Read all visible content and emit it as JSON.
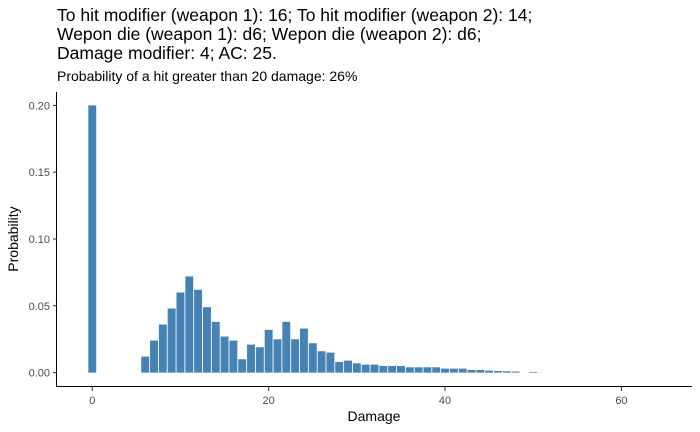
{
  "title_lines": [
    "To hit modifier (weapon 1): 16; To hit modifier (weapon 2): 14;",
    "Wepon die (weapon 1): d6; Wepon die (weapon 2): d6;",
    "Damage modifier: 4; AC: 25."
  ],
  "subtitle": "Probability of a hit greater than 20 damage: 26%",
  "colors": {
    "bar": "#4682b4",
    "axis": "#000000",
    "tick_text": "#4d4d4d"
  },
  "chart_data": {
    "type": "bar",
    "xlabel": "Damage",
    "ylabel": "Probability",
    "xlim": [
      -4,
      68
    ],
    "ylim": [
      -0.01,
      0.21
    ],
    "x_ticks": [
      0,
      20,
      40,
      60
    ],
    "y_ticks": [
      0.0,
      0.05,
      0.1,
      0.15,
      0.2
    ],
    "x_tick_labels": [
      "0",
      "20",
      "40",
      "60"
    ],
    "y_tick_labels": [
      "0.00",
      "0.05",
      "0.10",
      "0.15",
      "0.20"
    ],
    "grid": false,
    "x": [
      0,
      6,
      7,
      8,
      9,
      10,
      11,
      12,
      13,
      14,
      15,
      16,
      17,
      18,
      19,
      20,
      21,
      22,
      23,
      24,
      25,
      26,
      27,
      28,
      29,
      30,
      31,
      32,
      33,
      34,
      35,
      36,
      37,
      38,
      39,
      40,
      41,
      42,
      43,
      44,
      45,
      46,
      47,
      48,
      50
    ],
    "values": [
      0.2,
      0.012,
      0.024,
      0.036,
      0.048,
      0.06,
      0.072,
      0.062,
      0.049,
      0.038,
      0.027,
      0.024,
      0.01,
      0.021,
      0.019,
      0.032,
      0.025,
      0.038,
      0.025,
      0.033,
      0.022,
      0.016,
      0.015,
      0.008,
      0.009,
      0.007,
      0.006,
      0.006,
      0.005,
      0.005,
      0.005,
      0.004,
      0.004,
      0.004,
      0.004,
      0.003,
      0.003,
      0.003,
      0.002,
      0.002,
      0.0015,
      0.0012,
      0.001,
      0.0008,
      0.0005
    ]
  }
}
